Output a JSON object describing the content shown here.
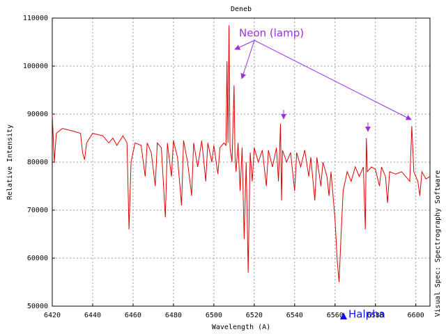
{
  "chart_data": {
    "type": "line",
    "title": "Deneb",
    "xlabel": "Wavelength (A)",
    "ylabel": "Relative Intensity",
    "side_label": "Visual Spec: Spectrography Software",
    "annotations": [
      "Neon (lamp)",
      "Halpha"
    ],
    "color": "#e00000",
    "grid": true,
    "xlim": [
      6420,
      6607
    ],
    "ylim": [
      50000,
      110000
    ],
    "xticks": [
      6420,
      6440,
      6460,
      6480,
      6500,
      6520,
      6540,
      6560,
      6580,
      6600
    ],
    "yticks": [
      50000,
      60000,
      70000,
      80000,
      90000,
      100000,
      110000
    ],
    "x": [
      6420,
      6421,
      6422,
      6425,
      6430,
      6434,
      6435,
      6436,
      6437,
      6440,
      6445,
      6448,
      6450,
      6452,
      6455,
      6457,
      6458,
      6459,
      6461,
      6464,
      6466,
      6467,
      6469,
      6471,
      6472,
      6474,
      6476,
      6477,
      6479,
      6480,
      6482,
      6484,
      6485,
      6487,
      6489,
      6490,
      6492,
      6494,
      6496,
      6497,
      6499,
      6500,
      6502,
      6503,
      6505,
      6506,
      6506.5,
      6507,
      6507.5,
      6508,
      6509,
      6510,
      6510.5,
      6511,
      6512,
      6513,
      6514,
      6515,
      6516,
      6517,
      6518,
      6519,
      6520,
      6522,
      6524,
      6526,
      6527,
      6529,
      6531,
      6532,
      6533,
      6533.5,
      6534,
      6536,
      6538,
      6540,
      6541,
      6543,
      6545,
      6547,
      6548,
      6550,
      6551,
      6553,
      6554,
      6556,
      6557,
      6558,
      6560,
      6561,
      6562,
      6563,
      6564,
      6566,
      6568,
      6570,
      6572,
      6574,
      6575,
      6575.5,
      6576,
      6578,
      6580,
      6582,
      6583,
      6585,
      6586,
      6587,
      6590,
      6593,
      6595,
      6597,
      6598,
      6599,
      6601,
      6602,
      6603,
      6605,
      6607
    ],
    "values": [
      90000,
      80000,
      86000,
      87000,
      86500,
      86000,
      82000,
      80500,
      84000,
      86000,
      85500,
      84000,
      85000,
      83500,
      85500,
      84000,
      66000,
      80000,
      84000,
      83500,
      77000,
      84000,
      82000,
      75000,
      84000,
      83000,
      68500,
      84000,
      77000,
      84500,
      81000,
      71000,
      84500,
      80000,
      73000,
      84000,
      79000,
      84500,
      76000,
      84000,
      80000,
      83500,
      77500,
      83000,
      84000,
      83500,
      101000,
      84000,
      108500,
      83000,
      80000,
      96000,
      81000,
      78000,
      84000,
      74000,
      83000,
      64000,
      80000,
      57000,
      82000,
      76000,
      83000,
      80000,
      82500,
      75000,
      82500,
      79000,
      83000,
      76000,
      88000,
      72000,
      82500,
      80000,
      82000,
      74000,
      82000,
      79000,
      82500,
      77000,
      81000,
      72000,
      81000,
      75000,
      80000,
      77000,
      73000,
      78000,
      68000,
      60000,
      55000,
      65000,
      74000,
      78000,
      76000,
      79000,
      77000,
      79000,
      66000,
      85000,
      78000,
      79000,
      78500,
      75000,
      79000,
      77000,
      71500,
      78000,
      77500,
      78000,
      77000,
      76000,
      87500,
      78000,
      76000,
      73000,
      78000,
      76500,
      77000
    ]
  }
}
